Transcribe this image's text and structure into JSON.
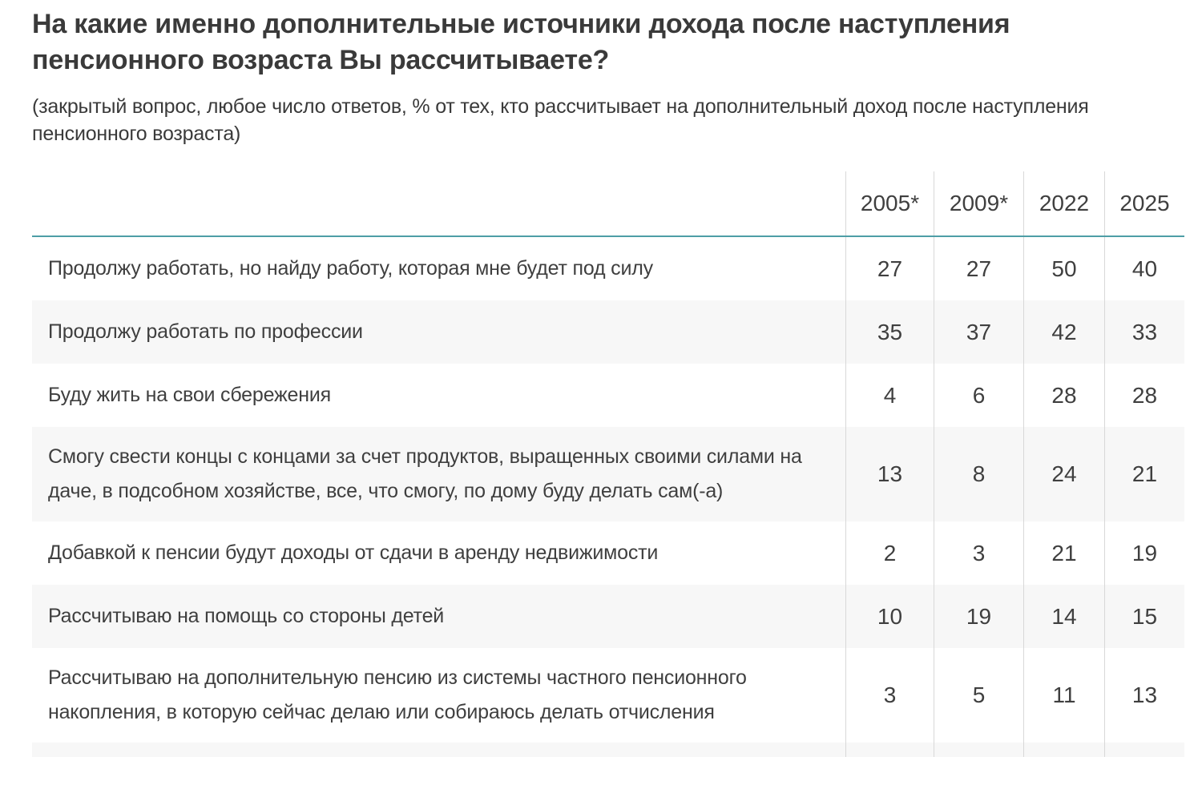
{
  "styles": {
    "text": "#3f3f3f",
    "title_text": "#3a3a3a",
    "accent_line": "#4d9ea6",
    "row_alt_bg": "#f7f7f7",
    "divider": "#d8d8d8",
    "page_bg": "#ffffff"
  },
  "chart_data": {
    "type": "table",
    "title": "На какие именно дополнительные источники дохода после наступления пенсионного возраста Вы рассчитываете?",
    "subtitle": "(закрытый вопрос, любое число ответов, % от тех, кто рассчитывает на дополнительный доход после наступления пенсионного возраста)",
    "unit": "%",
    "columns": [
      "2005*",
      "2009*",
      "2022",
      "2025"
    ],
    "rows": [
      {
        "label": "Продолжу работать, но найду работу, которая мне будет под силу",
        "values": [
          "27",
          "27",
          "50",
          "40"
        ]
      },
      {
        "label": "Продолжу работать по профессии",
        "values": [
          "35",
          "37",
          "42",
          "33"
        ]
      },
      {
        "label": "Буду жить на свои сбережения",
        "values": [
          "4",
          "6",
          "28",
          "28"
        ]
      },
      {
        "label": "Смогу свести концы с концами за счет продуктов, выращенных своими силами на даче, в подсобном хозяйстве, все, что смогу, по дому буду делать сам(-а)",
        "values": [
          "13",
          "8",
          "24",
          "21"
        ]
      },
      {
        "label": "Добавкой к пенсии будут доходы от сдачи в аренду недвижимости",
        "values": [
          "2",
          "3",
          "21",
          "19"
        ]
      },
      {
        "label": "Рассчитываю на помощь со стороны детей",
        "values": [
          "10",
          "19",
          "14",
          "15"
        ]
      },
      {
        "label": "Рассчитываю на дополнительную пенсию из системы частного пенсионного накопления, в которую сейчас делаю или собираюсь делать отчисления",
        "values": [
          "3",
          "5",
          "11",
          "13"
        ]
      }
    ]
  }
}
